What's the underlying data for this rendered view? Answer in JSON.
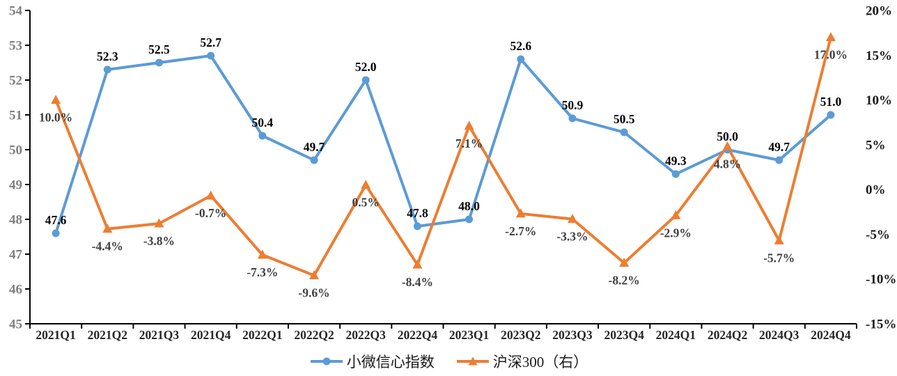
{
  "chart_data": {
    "type": "line",
    "categories": [
      "2021Q1",
      "2021Q2",
      "2021Q3",
      "2021Q4",
      "2022Q1",
      "2022Q2",
      "2022Q3",
      "2022Q4",
      "2023Q1",
      "2023Q2",
      "2023Q3",
      "2023Q4",
      "2024Q1",
      "2024Q2",
      "2024Q3",
      "2024Q4"
    ],
    "series": [
      {
        "name": "小微信心指数",
        "axis": "left",
        "color": "#5B9BD5",
        "marker": "circle",
        "label_position": "above",
        "label_color": "#000000",
        "values": [
          47.6,
          52.3,
          52.5,
          52.7,
          50.4,
          49.7,
          52.0,
          47.8,
          48.0,
          52.6,
          50.9,
          50.5,
          49.3,
          50.0,
          49.7,
          51.0
        ],
        "labels": [
          "47.6",
          "52.3",
          "52.5",
          "52.7",
          "50.4",
          "49.7",
          "52.0",
          "47.8",
          "48.0",
          "52.6",
          "50.9",
          "50.5",
          "49.3",
          "50.0",
          "49.7",
          "51.0"
        ]
      },
      {
        "name": "沪深300（右）",
        "axis": "right",
        "color": "#ED7D31",
        "marker": "triangle",
        "label_position": "below",
        "label_color": "#3F3F3F",
        "values": [
          10.0,
          -4.4,
          -3.8,
          -0.7,
          -7.3,
          -9.6,
          0.5,
          -8.4,
          7.1,
          -2.7,
          -3.3,
          -8.2,
          -2.9,
          4.8,
          -5.7,
          17.0
        ],
        "labels": [
          "10.0%",
          "-4.4%",
          "-3.8%",
          "-0.7%",
          "-7.3%",
          "-9.6%",
          "0.5%",
          "-8.4%",
          "7.1%",
          "-2.7%",
          "-3.3%",
          "-8.2%",
          "-2.9%",
          "4.8%",
          "-5.7%",
          "17.0%"
        ]
      }
    ],
    "left_axis": {
      "min": 45,
      "max": 54,
      "step": 1,
      "tick_labels": [
        "54",
        "53",
        "52",
        "51",
        "50",
        "49",
        "48",
        "47",
        "46",
        "45"
      ]
    },
    "right_axis": {
      "min": -15,
      "max": 20,
      "step": 5,
      "tick_labels": [
        "20%",
        "15%",
        "10%",
        "5%",
        "0%",
        "-5%",
        "-10%",
        "-15%"
      ]
    },
    "legend": {
      "position": "bottom"
    },
    "grid": false,
    "axis_colors": {
      "left_labels": "#7F7F7F",
      "right_labels": "#1A1A1A",
      "x_labels": "#262626",
      "axis_line": "#000000"
    }
  }
}
